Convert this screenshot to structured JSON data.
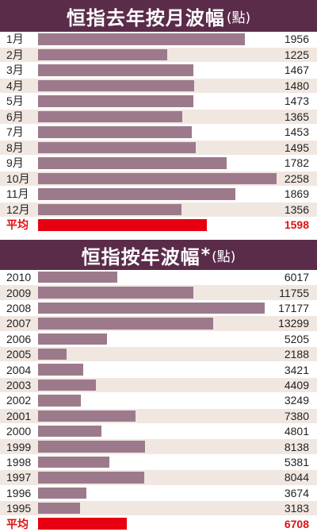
{
  "colors": {
    "title_bg": "#5b2c4a",
    "bar": "#9c7a8c",
    "avg_bar": "#e60012",
    "avg_text": "#e01010",
    "alt_row": "#f1e7e1"
  },
  "chart_data": [
    {
      "type": "bar",
      "orientation": "horizontal",
      "title": "恒指去年按月波幅",
      "unit": "(點)",
      "categories": [
        "1月",
        "2月",
        "3月",
        "4月",
        "5月",
        "6月",
        "7月",
        "8月",
        "9月",
        "10月",
        "11月",
        "12月",
        "平均"
      ],
      "values": [
        1956,
        1225,
        1467,
        1480,
        1473,
        1365,
        1453,
        1495,
        1782,
        2258,
        1869,
        1356,
        1598
      ],
      "xlim": [
        0,
        2258
      ]
    },
    {
      "type": "bar",
      "orientation": "horizontal",
      "title": "恒指按年波幅",
      "title_mark": "*",
      "unit": "(點)",
      "categories": [
        "2010",
        "2009",
        "2008",
        "2007",
        "2006",
        "2005",
        "2004",
        "2003",
        "2002",
        "2001",
        "2000",
        "1999",
        "1998",
        "1997",
        "1996",
        "1995",
        "平均"
      ],
      "values": [
        6017,
        11755,
        17177,
        13299,
        5205,
        2188,
        3421,
        4409,
        3249,
        7380,
        4801,
        8138,
        5381,
        8044,
        3674,
        3183,
        6708
      ],
      "xlim": [
        0,
        17177
      ]
    }
  ]
}
